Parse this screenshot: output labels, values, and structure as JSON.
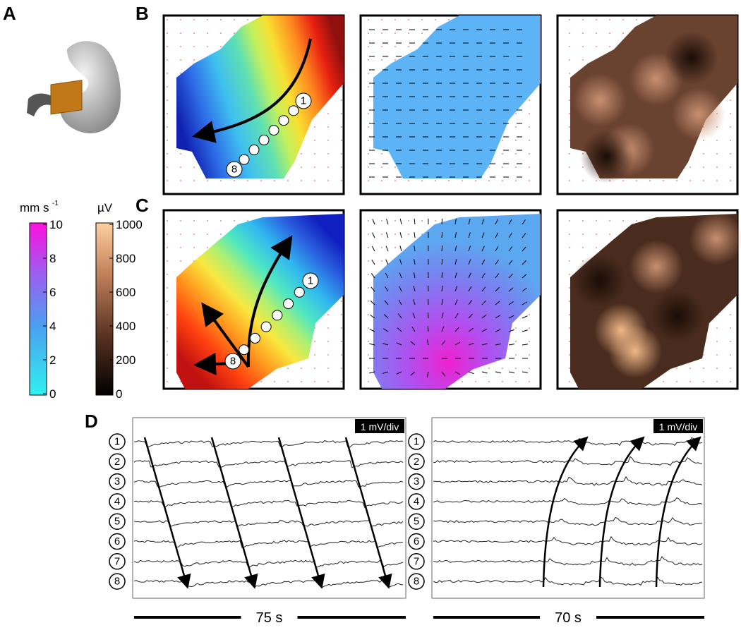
{
  "panel_labels": [
    "A",
    "B",
    "C",
    "D"
  ],
  "colorbars": [
    {
      "unit": "mm s",
      "unit_exponent": "-1",
      "ticks": [
        "10",
        "8",
        "6",
        "4",
        "2",
        "0"
      ]
    },
    {
      "unit": "µV",
      "ticks": [
        "1000",
        "800",
        "600",
        "400",
        "200",
        "0"
      ]
    }
  ],
  "maps": {
    "B": {
      "start": "1",
      "end": "8"
    },
    "C": {
      "start": "1",
      "end": "8"
    }
  },
  "traces": [
    {
      "scale": "1 mV/div",
      "electrodes": [
        "1",
        "2",
        "3",
        "4",
        "5",
        "6",
        "7",
        "8"
      ],
      "time": "75 s"
    },
    {
      "scale": "1 mV/div",
      "electrodes": [
        "1",
        "2",
        "3",
        "4",
        "5",
        "6",
        "7",
        "8"
      ],
      "time": "70 s"
    }
  ]
}
